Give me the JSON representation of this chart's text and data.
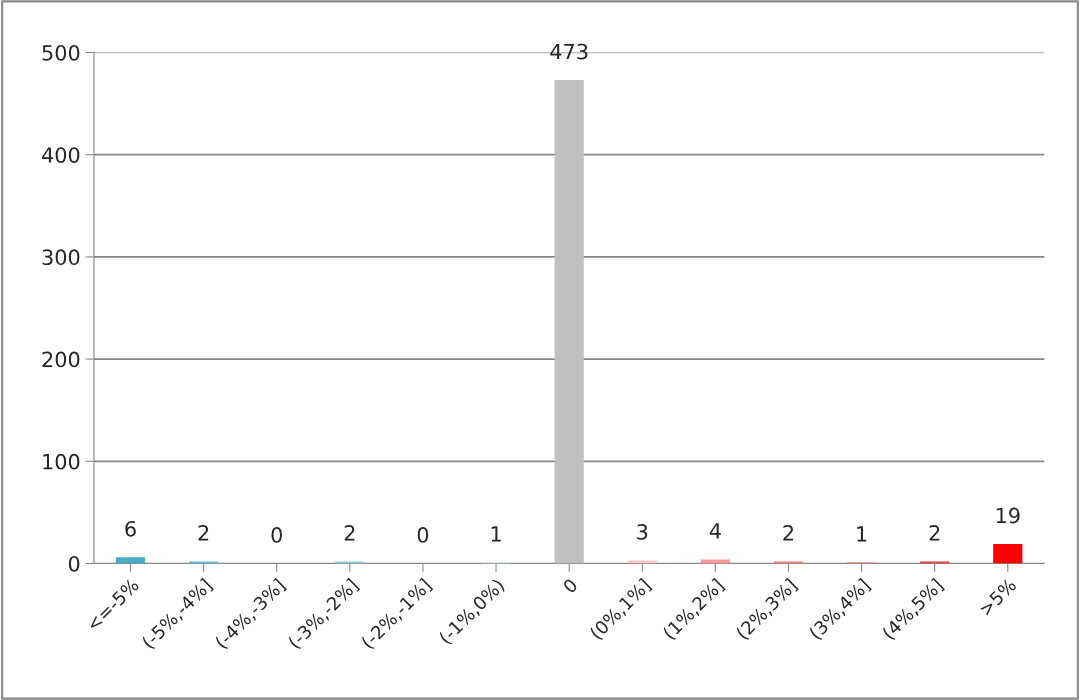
{
  "chart_data": {
    "type": "bar",
    "categories": [
      "<=-5%",
      "(-5%,-4%]",
      "(-4%,-3%]",
      "(-3%,-2%]",
      "(-2%,-1%]",
      "(-1%,0%)",
      "0",
      "(0%,1%]",
      "(1%,2%]",
      "(2%,3%]",
      "(3%,4%]",
      "(4%,5%]",
      ">5%"
    ],
    "values": [
      6,
      2,
      0,
      2,
      0,
      1,
      473,
      3,
      4,
      2,
      1,
      2,
      19
    ],
    "colors": [
      "#4bacc6",
      "#6bbcd2",
      null,
      "#93cddd",
      null,
      "#daeef3",
      "#c0c0c0",
      "#ffc7c7",
      "#ff9999",
      "#f28080",
      "#ff6666",
      "#f04040",
      "#ff0000"
    ],
    "ylim": [
      0,
      500
    ],
    "yticks": [
      0,
      100,
      200,
      300,
      400,
      500
    ],
    "grid": "y",
    "data_labels": true
  }
}
